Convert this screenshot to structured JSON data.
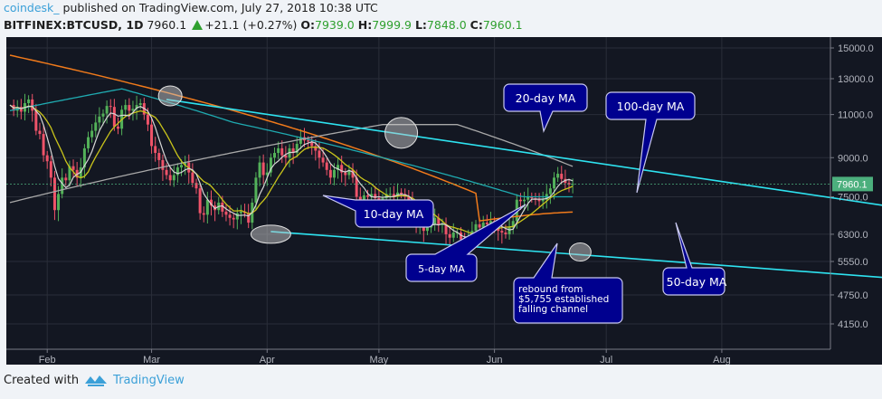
{
  "header": {
    "author": "coindesk_",
    "published_text": "published on TradingView.com, July 27, 2018 10:38 UTC",
    "symbol": "BITFINEX:BTCUSD, 1D",
    "last_price": "7960.1",
    "change": "+21.1 (+0.27%)",
    "open_label": "O:",
    "open": "7939.0",
    "high_label": "H:",
    "high": "7999.9",
    "low_label": "L:",
    "low": "7848.0",
    "close_label": "C:",
    "close": "7960.1"
  },
  "footer": {
    "created_with": "Created with",
    "brand": "TradingView"
  },
  "colors": {
    "background": "#131722",
    "grid": "#2a2e39",
    "up": "#53b159",
    "down": "#ef5369",
    "ma5": "#d6d6d6",
    "ma10": "#c9c41b",
    "ma20": "#a8a8a8",
    "ma50": "#f07a1b",
    "ma100": "#1faab0",
    "trendline": "#2ee3f0",
    "callout": "#00008f",
    "price_label": "#4caf7d"
  },
  "chart_data": {
    "type": "candlestick",
    "title": "BITFINEX:BTCUSD, 1D",
    "xlabel": "",
    "ylabel": "",
    "y_scale": "log",
    "ylim": [
      3900,
      16000
    ],
    "y_ticks": [
      "15000.0",
      "13000.0",
      "11000.0",
      "9000.0",
      "7500.0",
      "6300.0",
      "5550.0",
      "4750.0",
      "4150.0"
    ],
    "x_ticks": [
      "Feb",
      "Mar",
      "Apr",
      "May",
      "Jun",
      "Jul",
      "Aug"
    ],
    "current_price_label": "7960.1",
    "grid": true,
    "series": [
      {
        "name": "BTCUSD price (approx daily close)",
        "x_range": [
          "2018-01-22",
          "2018-07-27"
        ],
        "values": [
          11500,
          11200,
          11400,
          11150,
          11600,
          11800,
          11200,
          10200,
          10050,
          9100,
          8850,
          8200,
          7050,
          7600,
          8200,
          8100,
          8650,
          8500,
          8200,
          8600,
          9400,
          9900,
          10200,
          10600,
          10900,
          11050,
          11450,
          11400,
          10400,
          10300,
          11250,
          11500,
          11200,
          11300,
          11500,
          11600,
          11000,
          10500,
          9500,
          9200,
          8900,
          8500,
          8300,
          8100,
          8300,
          8600,
          8700,
          8800,
          8400,
          8000,
          7800,
          6950,
          6900,
          7400,
          7200,
          7050,
          7300,
          7000,
          6900,
          6800,
          6750,
          6950,
          7000,
          6950,
          6650,
          7300,
          8200,
          8800,
          8300,
          8400,
          9000,
          9200,
          9400,
          9100,
          9000,
          9400,
          9200,
          9600,
          9900,
          9750,
          9700,
          9500,
          9300,
          9000,
          8800,
          8500,
          8200,
          8500,
          8700,
          8400,
          8300,
          8500,
          8200,
          7500,
          7350,
          7550,
          7500,
          7600,
          7450,
          7400,
          7450,
          7600,
          7600,
          7500,
          7650,
          7600,
          7500,
          7400,
          6800,
          6600,
          6700,
          6400,
          6500,
          6600,
          6800,
          6600,
          6600,
          6300,
          6200,
          6350,
          6350,
          6150,
          6050,
          6200,
          6400,
          6600,
          6500,
          6650,
          6600,
          6700,
          6600,
          6400,
          6350,
          6300,
          6500,
          6700,
          7400,
          7350,
          7400,
          7500,
          7450,
          7400,
          7350,
          7400,
          7600,
          7800,
          8200,
          8350,
          8150,
          8000,
          7940,
          7960
        ]
      },
      {
        "name": "5-day MA",
        "color": "#d6d6d6"
      },
      {
        "name": "10-day MA",
        "color": "#c9c41b"
      },
      {
        "name": "20-day MA",
        "color": "#a8a8a8"
      },
      {
        "name": "50-day MA",
        "color": "#f07a1b",
        "last": 6750
      },
      {
        "name": "100-day MA",
        "color": "#1faab0",
        "last": 7650
      }
    ],
    "trendlines": [
      {
        "name": "upper falling channel",
        "from": [
          "2018-03-05",
          11800
        ],
        "to": [
          "2018-08-31",
          7350
        ]
      },
      {
        "name": "lower falling channel",
        "from": [
          "2018-04-01",
          6400
        ],
        "to": [
          "2018-08-31",
          5200
        ]
      }
    ],
    "annotations": [
      {
        "text": "20-day MA"
      },
      {
        "text": "100-day MA"
      },
      {
        "text": "10-day MA"
      },
      {
        "text": "5-day MA"
      },
      {
        "text": "rebound from $5,755 established falling channel"
      },
      {
        "text": "50-day MA"
      }
    ]
  },
  "callouts": {
    "ma20": "20-day MA",
    "ma100": "100-day MA",
    "ma10": "10-day MA",
    "ma5": "5-day MA",
    "rebound_l1": "rebound from",
    "rebound_l2": "$5,755 established",
    "rebound_l3": "falling channel",
    "ma50": "50-day MA"
  }
}
